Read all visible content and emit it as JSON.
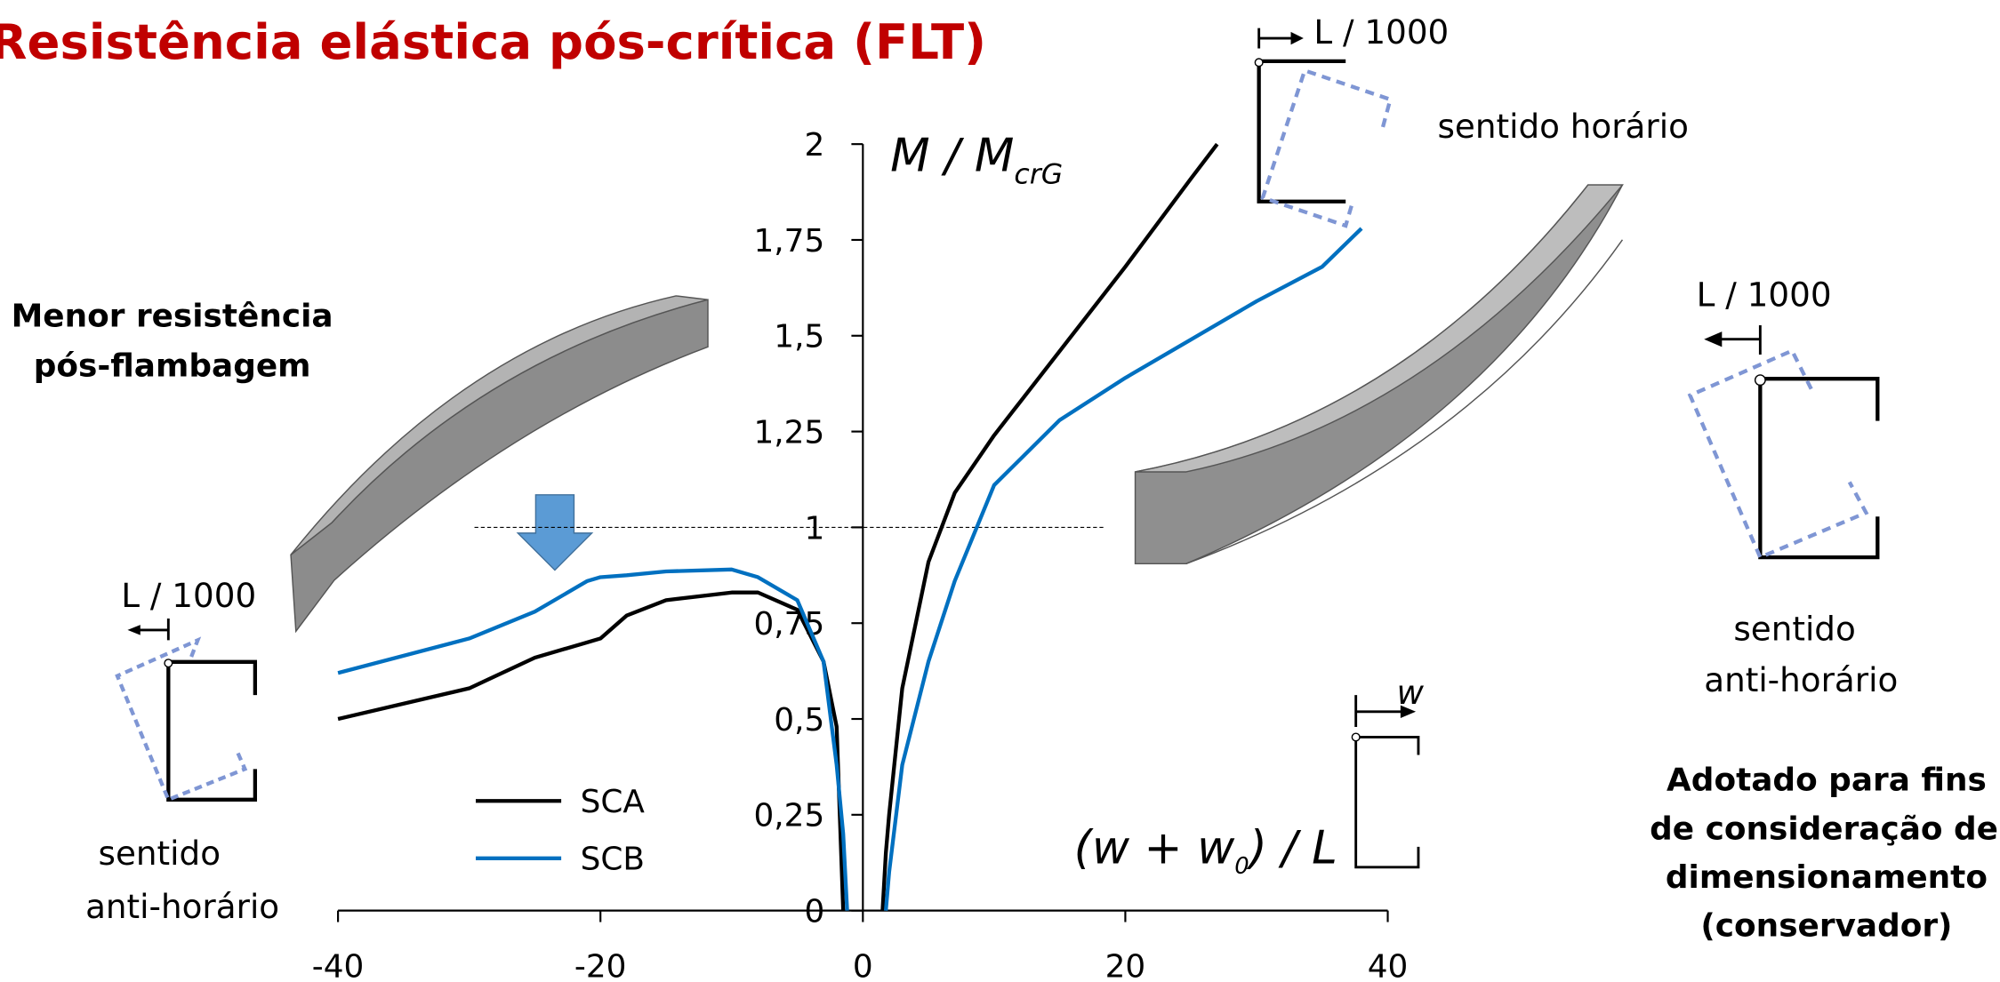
{
  "chart_data": {
    "type": "line",
    "title": "Resistência elástica pós-crítica (FLT)",
    "y_label": {
      "main": "M / M",
      "sub": "crG"
    },
    "x_label": {
      "main": "(w + w",
      "sub": "0",
      "end": ") / L"
    },
    "x": [
      -40,
      -30,
      -25,
      -21,
      -20,
      -18,
      -15,
      -10,
      -8,
      -5,
      -3,
      -2,
      -1.5,
      -1.2,
      0,
      1.5,
      1.75,
      2,
      3,
      5,
      7,
      10,
      15,
      20,
      25,
      27,
      30,
      35,
      38
    ],
    "series": [
      {
        "name": "SCA",
        "color": "#000000",
        "values": [
          0.5,
          0.58,
          0.66,
          0.7,
          0.71,
          0.77,
          0.81,
          0.83,
          0.83,
          0.785,
          0.65,
          0.48,
          0,
          null,
          null,
          0,
          0.15,
          0.25,
          0.58,
          0.91,
          1.09,
          1.24,
          1.46,
          1.68,
          1.91,
          2,
          null,
          null,
          null
        ]
      },
      {
        "name": "SCB",
        "color": "#0070c0",
        "values": [
          0.62,
          0.71,
          0.78,
          0.86,
          0.87,
          0.875,
          0.885,
          0.89,
          0.87,
          0.81,
          0.65,
          0.38,
          0.2,
          0,
          null,
          null,
          0,
          0.1,
          0.38,
          0.65,
          0.86,
          1.11,
          1.28,
          1.39,
          1.49,
          1.53,
          1.59,
          1.68,
          1.78
        ]
      }
    ],
    "xlim": [
      -40,
      40
    ],
    "xticks": [
      -40,
      -20,
      0,
      20,
      40
    ],
    "ylim": [
      0,
      2
    ],
    "yticks": [
      0,
      {
        "value": 0.25,
        "label": "0,25"
      },
      {
        "value": 0.5,
        "label": "0,5"
      },
      {
        "value": 0.75,
        "label": "0,75"
      },
      1,
      {
        "value": 1.25,
        "label": "1,25"
      },
      {
        "value": 1.5,
        "label": "1,5"
      },
      {
        "value": 1.75,
        "label": "1,75"
      },
      2
    ],
    "reference_line": 1,
    "annotations": {
      "left_title": [
        "Menor resistência",
        "pós-flambagem"
      ],
      "left_section": {
        "dim": "L / 1000",
        "dir": [
          "sentido",
          "anti-horário"
        ]
      },
      "top_section": {
        "dim": "L / 1000",
        "dir": "sentido horário"
      },
      "right_section": {
        "dim": "L / 1000",
        "dir": [
          "sentido",
          "anti-horário"
        ]
      },
      "right_note": [
        "Adotado para fins",
        "de consideração de",
        "dimensionamento",
        "(conservador)"
      ],
      "w_symbol": "w"
    }
  }
}
